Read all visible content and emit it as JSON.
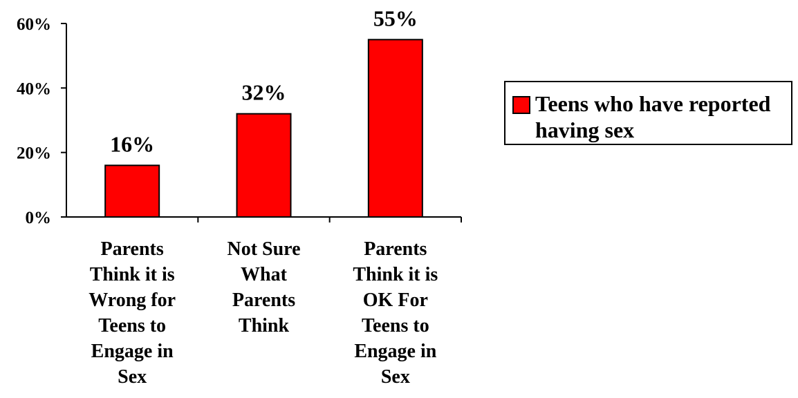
{
  "chart_data": {
    "type": "bar",
    "categories": [
      [
        "Parents",
        "Think it is",
        "Wrong for",
        "Teens to",
        "Engage in",
        "Sex"
      ],
      [
        "Not Sure",
        "What",
        "Parents",
        "Think"
      ],
      [
        "Parents",
        "Think it is",
        "OK For",
        "Teens to",
        "Engage in",
        "Sex"
      ]
    ],
    "series": [
      {
        "name": "Teens who have reported having sex",
        "values": [
          16,
          32,
          55
        ],
        "data_labels": [
          "16%",
          "32%",
          "55%"
        ],
        "color": "#ff0000"
      }
    ],
    "ylim": [
      0,
      60
    ],
    "yticks": [
      0,
      20,
      40,
      60
    ],
    "ytick_labels": [
      "0%",
      "20%",
      "40%",
      "60%"
    ],
    "grid": false,
    "legend_position": "right"
  },
  "legend": {
    "label": "Teens who have reported having sex",
    "swatch_color": "#ff0000"
  }
}
